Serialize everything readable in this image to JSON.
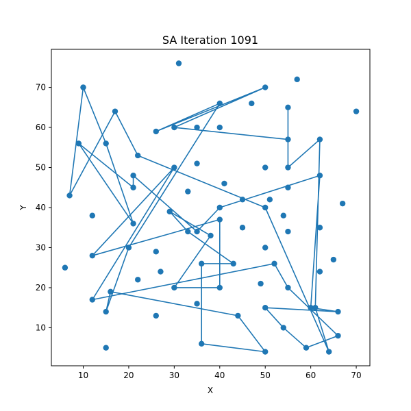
{
  "chart_data": {
    "type": "line",
    "title": "SA Iteration 1091",
    "xlabel": "X",
    "ylabel": "Y",
    "xlim": [
      3,
      73
    ],
    "ylim": [
      0.5,
      79.5
    ],
    "xticks": [
      10,
      20,
      30,
      40,
      50,
      60,
      70
    ],
    "yticks": [
      10,
      20,
      30,
      40,
      50,
      60,
      70
    ],
    "grid": false,
    "color": "#1f77b4",
    "marker": "circle",
    "points": [
      [
        10,
        70
      ],
      [
        15,
        56
      ],
      [
        21,
        36
      ],
      [
        9,
        56
      ],
      [
        21,
        45
      ],
      [
        21,
        48
      ],
      [
        35,
        34
      ],
      [
        40,
        40
      ],
      [
        62,
        48
      ],
      [
        60,
        15
      ],
      [
        66,
        14
      ],
      [
        50,
        15
      ],
      [
        54,
        10
      ],
      [
        59,
        5
      ],
      [
        66,
        8
      ],
      [
        55,
        20
      ],
      [
        52,
        26
      ],
      [
        12,
        17
      ],
      [
        30,
        50
      ],
      [
        12,
        28
      ],
      [
        40,
        37
      ],
      [
        40,
        20
      ],
      [
        30,
        20
      ],
      [
        38,
        33
      ],
      [
        29,
        39
      ],
      [
        33,
        34
      ],
      [
        43,
        26
      ],
      [
        36,
        26
      ],
      [
        36,
        6
      ],
      [
        50,
        4
      ],
      [
        44,
        13
      ],
      [
        16,
        19
      ],
      [
        15,
        14
      ],
      [
        20,
        30
      ],
      [
        40,
        66
      ],
      [
        26,
        59
      ],
      [
        50,
        70
      ],
      [
        30,
        60
      ],
      [
        55,
        57
      ],
      [
        55,
        65
      ],
      [
        55,
        50
      ],
      [
        62,
        57
      ],
      [
        61,
        15
      ],
      [
        64,
        4
      ],
      [
        50,
        40
      ],
      [
        22,
        53
      ],
      [
        17,
        64
      ],
      [
        7,
        43
      ],
      [
        10,
        70
      ]
    ],
    "extra_points": [
      [
        31,
        76
      ],
      [
        47,
        66
      ],
      [
        57,
        72
      ],
      [
        35,
        60
      ],
      [
        40,
        60
      ],
      [
        35,
        51
      ],
      [
        41,
        46
      ],
      [
        45,
        42
      ],
      [
        50,
        50
      ],
      [
        70,
        64
      ],
      [
        55,
        45
      ],
      [
        51,
        42
      ],
      [
        67,
        41
      ],
      [
        33,
        44
      ],
      [
        12,
        38
      ],
      [
        45,
        35
      ],
      [
        55,
        34
      ],
      [
        54,
        38
      ],
      [
        62,
        35
      ],
      [
        65,
        27
      ],
      [
        62,
        24
      ],
      [
        50,
        30
      ],
      [
        49,
        21
      ],
      [
        26,
        29
      ],
      [
        27,
        24
      ],
      [
        22,
        22
      ],
      [
        26,
        13
      ],
      [
        35,
        16
      ],
      [
        15,
        5
      ],
      [
        6,
        25
      ]
    ]
  }
}
